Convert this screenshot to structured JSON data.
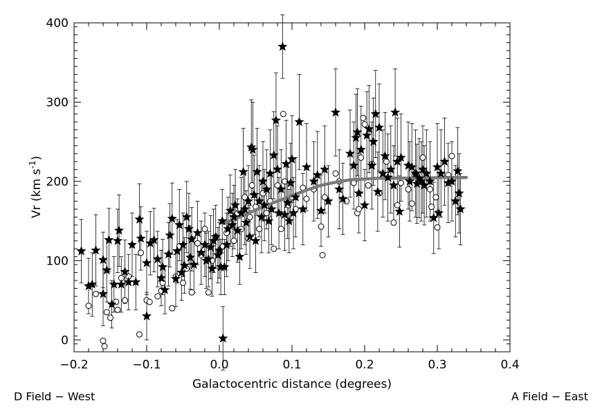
{
  "chart_data": {
    "type": "scatter",
    "xlabel": "Galactocentric distance (degrees)",
    "ylabel_main": "Vr (km s",
    "ylabel_sup": "-1",
    "ylabel_close": ")",
    "xlim": [
      -0.2,
      0.4
    ],
    "ylim": [
      -15,
      400
    ],
    "x_ticks": [
      -0.2,
      -0.1,
      0.0,
      0.1,
      0.2,
      0.3,
      0.4
    ],
    "x_tick_labels": [
      "−0.2",
      "−0.1",
      "0.0",
      "0.1",
      "0.2",
      "0.3",
      "0.4"
    ],
    "y_ticks": [
      0,
      100,
      200,
      300,
      400
    ],
    "y_tick_labels": [
      "0",
      "100",
      "200",
      "300",
      "400"
    ],
    "grid": false,
    "footer_left": "D Field − West",
    "footer_right": "A Field − East",
    "colors": {
      "points": "#000000",
      "trend": "#7a7a7a"
    },
    "series": [
      {
        "marker": "star",
        "points": [
          [
            -0.19,
            112,
            40
          ],
          [
            -0.18,
            68,
            35
          ],
          [
            -0.175,
            70,
            40
          ],
          [
            -0.17,
            113,
            45
          ],
          [
            -0.16,
            58,
            40
          ],
          [
            -0.16,
            101,
            35
          ],
          [
            -0.155,
            88,
            40
          ],
          [
            -0.152,
            126,
            40
          ],
          [
            -0.148,
            45,
            30
          ],
          [
            -0.145,
            70,
            35
          ],
          [
            -0.14,
            125,
            40
          ],
          [
            -0.138,
            138,
            45
          ],
          [
            -0.135,
            70,
            35
          ],
          [
            -0.13,
            86,
            40
          ],
          [
            -0.125,
            73,
            35
          ],
          [
            -0.12,
            120,
            40
          ],
          [
            -0.115,
            73,
            35
          ],
          [
            -0.11,
            152,
            45
          ],
          [
            -0.108,
            128,
            40
          ],
          [
            -0.1,
            30,
            30
          ],
          [
            -0.1,
            97,
            40
          ],
          [
            -0.095,
            122,
            40
          ],
          [
            -0.09,
            126,
            40
          ],
          [
            -0.085,
            102,
            35
          ],
          [
            -0.08,
            78,
            35
          ],
          [
            -0.078,
            92,
            35
          ],
          [
            -0.075,
            63,
            30
          ],
          [
            -0.07,
            108,
            40
          ],
          [
            -0.068,
            132,
            40
          ],
          [
            -0.065,
            153,
            45
          ],
          [
            -0.06,
            77,
            35
          ],
          [
            -0.058,
            112,
            40
          ],
          [
            -0.055,
            145,
            45
          ],
          [
            -0.052,
            85,
            35
          ],
          [
            -0.05,
            120,
            40
          ],
          [
            -0.048,
            94,
            35
          ],
          [
            -0.045,
            155,
            45
          ],
          [
            -0.042,
            140,
            45
          ],
          [
            -0.04,
            104,
            40
          ],
          [
            -0.038,
            127,
            40
          ],
          [
            -0.035,
            95,
            35
          ],
          [
            -0.03,
            135,
            40
          ],
          [
            -0.025,
            110,
            40
          ],
          [
            -0.02,
            120,
            40
          ],
          [
            -0.018,
            100,
            35
          ],
          [
            -0.015,
            102,
            35
          ],
          [
            -0.012,
            117,
            40
          ],
          [
            -0.01,
            90,
            35
          ],
          [
            -0.008,
            125,
            40
          ],
          [
            -0.005,
            130,
            40
          ],
          [
            -0.002,
            107,
            35
          ],
          [
            0.0,
            113,
            35
          ],
          [
            0.002,
            92,
            35
          ],
          [
            0.004,
            150,
            40
          ],
          [
            0.005,
            2,
            40
          ],
          [
            0.007,
            92,
            35
          ],
          [
            0.01,
            120,
            40
          ],
          [
            0.012,
            140,
            40
          ],
          [
            0.015,
            163,
            45
          ],
          [
            0.018,
            145,
            40
          ],
          [
            0.02,
            155,
            40
          ],
          [
            0.022,
            170,
            45
          ],
          [
            0.025,
            138,
            40
          ],
          [
            0.028,
            105,
            35
          ],
          [
            0.03,
            160,
            45
          ],
          [
            0.033,
            212,
            55
          ],
          [
            0.035,
            165,
            45
          ],
          [
            0.037,
            148,
            40
          ],
          [
            0.04,
            175,
            45
          ],
          [
            0.042,
            130,
            40
          ],
          [
            0.044,
            243,
            60
          ],
          [
            0.046,
            240,
            60
          ],
          [
            0.048,
            183,
            50
          ],
          [
            0.05,
            125,
            40
          ],
          [
            0.052,
            212,
            55
          ],
          [
            0.055,
            175,
            45
          ],
          [
            0.058,
            155,
            45
          ],
          [
            0.06,
            200,
            50
          ],
          [
            0.062,
            170,
            45
          ],
          [
            0.065,
            190,
            50
          ],
          [
            0.068,
            150,
            40
          ],
          [
            0.07,
            210,
            55
          ],
          [
            0.072,
            165,
            45
          ],
          [
            0.075,
            233,
            55
          ],
          [
            0.078,
            277,
            60
          ],
          [
            0.08,
            215,
            55
          ],
          [
            0.082,
            160,
            45
          ],
          [
            0.085,
            190,
            50
          ],
          [
            0.087,
            370,
            40
          ],
          [
            0.09,
            158,
            45
          ],
          [
            0.092,
            222,
            55
          ],
          [
            0.094,
            173,
            45
          ],
          [
            0.096,
            150,
            40
          ],
          [
            0.098,
            198,
            50
          ],
          [
            0.1,
            228,
            55
          ],
          [
            0.102,
            160,
            45
          ],
          [
            0.105,
            180,
            50
          ],
          [
            0.11,
            275,
            60
          ],
          [
            0.115,
            165,
            45
          ],
          [
            0.12,
            218,
            55
          ],
          [
            0.13,
            200,
            50
          ],
          [
            0.135,
            208,
            55
          ],
          [
            0.14,
            163,
            45
          ],
          [
            0.145,
            215,
            55
          ],
          [
            0.15,
            175,
            45
          ],
          [
            0.16,
            287,
            55
          ],
          [
            0.165,
            190,
            50
          ],
          [
            0.17,
            178,
            45
          ],
          [
            0.18,
            235,
            55
          ],
          [
            0.185,
            220,
            55
          ],
          [
            0.188,
            255,
            55
          ],
          [
            0.19,
            262,
            55
          ],
          [
            0.192,
            185,
            50
          ],
          [
            0.195,
            240,
            55
          ],
          [
            0.2,
            170,
            45
          ],
          [
            0.203,
            258,
            55
          ],
          [
            0.206,
            266,
            55
          ],
          [
            0.21,
            220,
            55
          ],
          [
            0.212,
            250,
            55
          ],
          [
            0.215,
            285,
            55
          ],
          [
            0.218,
            187,
            50
          ],
          [
            0.22,
            268,
            55
          ],
          [
            0.225,
            210,
            55
          ],
          [
            0.228,
            232,
            55
          ],
          [
            0.232,
            205,
            55
          ],
          [
            0.236,
            215,
            55
          ],
          [
            0.24,
            195,
            50
          ],
          [
            0.242,
            287,
            55
          ],
          [
            0.245,
            225,
            55
          ],
          [
            0.248,
            162,
            45
          ],
          [
            0.25,
            230,
            55
          ],
          [
            0.26,
            220,
            55
          ],
          [
            0.262,
            200,
            50
          ],
          [
            0.265,
            218,
            55
          ],
          [
            0.27,
            210,
            55
          ],
          [
            0.272,
            197,
            50
          ],
          [
            0.275,
            204,
            50
          ],
          [
            0.278,
            200,
            50
          ],
          [
            0.28,
            215,
            55
          ],
          [
            0.282,
            195,
            50
          ],
          [
            0.285,
            210,
            55
          ],
          [
            0.29,
            200,
            50
          ],
          [
            0.295,
            154,
            45
          ],
          [
            0.3,
            218,
            55
          ],
          [
            0.302,
            160,
            45
          ],
          [
            0.305,
            210,
            55
          ],
          [
            0.31,
            225,
            55
          ],
          [
            0.315,
            198,
            50
          ],
          [
            0.32,
            200,
            50
          ],
          [
            0.325,
            175,
            45
          ],
          [
            0.328,
            213,
            55
          ],
          [
            0.33,
            185,
            50
          ],
          [
            0.332,
            165,
            45
          ]
        ]
      },
      {
        "marker": "circle",
        "points": [
          [
            -0.18,
            43
          ],
          [
            -0.17,
            58
          ],
          [
            -0.16,
            -1
          ],
          [
            -0.158,
            -8
          ],
          [
            -0.155,
            35
          ],
          [
            -0.15,
            28
          ],
          [
            -0.142,
            48
          ],
          [
            -0.14,
            38
          ],
          [
            -0.135,
            78
          ],
          [
            -0.13,
            50
          ],
          [
            -0.125,
            80
          ],
          [
            -0.11,
            7
          ],
          [
            -0.108,
            110
          ],
          [
            -0.1,
            50
          ],
          [
            -0.096,
            48
          ],
          [
            -0.085,
            55
          ],
          [
            -0.08,
            62
          ],
          [
            -0.078,
            72
          ],
          [
            -0.065,
            40
          ],
          [
            -0.06,
            80
          ],
          [
            -0.055,
            118
          ],
          [
            -0.05,
            72
          ],
          [
            -0.045,
            90
          ],
          [
            -0.038,
            60
          ],
          [
            -0.03,
            122
          ],
          [
            -0.025,
            107
          ],
          [
            -0.02,
            140
          ],
          [
            -0.015,
            60
          ],
          [
            -0.01,
            100
          ],
          [
            -0.005,
            130
          ],
          [
            0.0,
            112
          ],
          [
            0.005,
            118
          ],
          [
            0.01,
            135
          ],
          [
            0.015,
            148
          ],
          [
            0.02,
            125
          ],
          [
            0.025,
            160
          ],
          [
            0.03,
            140
          ],
          [
            0.035,
            180
          ],
          [
            0.04,
            128
          ],
          [
            0.042,
            155
          ],
          [
            0.045,
            195
          ],
          [
            0.05,
            168
          ],
          [
            0.055,
            140
          ],
          [
            0.06,
            185
          ],
          [
            0.065,
            160
          ],
          [
            0.07,
            175
          ],
          [
            0.075,
            115
          ],
          [
            0.08,
            195
          ],
          [
            0.085,
            140
          ],
          [
            0.088,
            285
          ],
          [
            0.09,
            200
          ],
          [
            0.095,
            170
          ],
          [
            0.1,
            180
          ],
          [
            0.105,
            165
          ],
          [
            0.115,
            192
          ],
          [
            0.12,
            178
          ],
          [
            0.13,
            190
          ],
          [
            0.14,
            143
          ],
          [
            0.142,
            107
          ],
          [
            0.145,
            180
          ],
          [
            0.16,
            210
          ],
          [
            0.165,
            200
          ],
          [
            0.175,
            175
          ],
          [
            0.185,
            198
          ],
          [
            0.19,
            160
          ],
          [
            0.192,
            165
          ],
          [
            0.195,
            230
          ],
          [
            0.198,
            280
          ],
          [
            0.2,
            272
          ],
          [
            0.205,
            195
          ],
          [
            0.21,
            222
          ],
          [
            0.22,
            185
          ],
          [
            0.23,
            225
          ],
          [
            0.24,
            148
          ],
          [
            0.245,
            170
          ],
          [
            0.25,
            198
          ],
          [
            0.26,
            190
          ],
          [
            0.265,
            172
          ],
          [
            0.27,
            210
          ],
          [
            0.275,
            200
          ],
          [
            0.28,
            230
          ],
          [
            0.29,
            190
          ],
          [
            0.292,
            168
          ],
          [
            0.298,
            180
          ],
          [
            0.3,
            142
          ],
          [
            0.315,
            208
          ],
          [
            0.32,
            232
          ]
        ]
      }
    ],
    "trend_line": [
      [
        0.005,
        147
      ],
      [
        0.02,
        152
      ],
      [
        0.04,
        160
      ],
      [
        0.06,
        168
      ],
      [
        0.08,
        175
      ],
      [
        0.1,
        182
      ],
      [
        0.12,
        189
      ],
      [
        0.14,
        195
      ],
      [
        0.16,
        199
      ],
      [
        0.18,
        202
      ],
      [
        0.2,
        203
      ],
      [
        0.22,
        204
      ],
      [
        0.25,
        204
      ],
      [
        0.28,
        204
      ],
      [
        0.31,
        205
      ],
      [
        0.34,
        205
      ]
    ]
  }
}
